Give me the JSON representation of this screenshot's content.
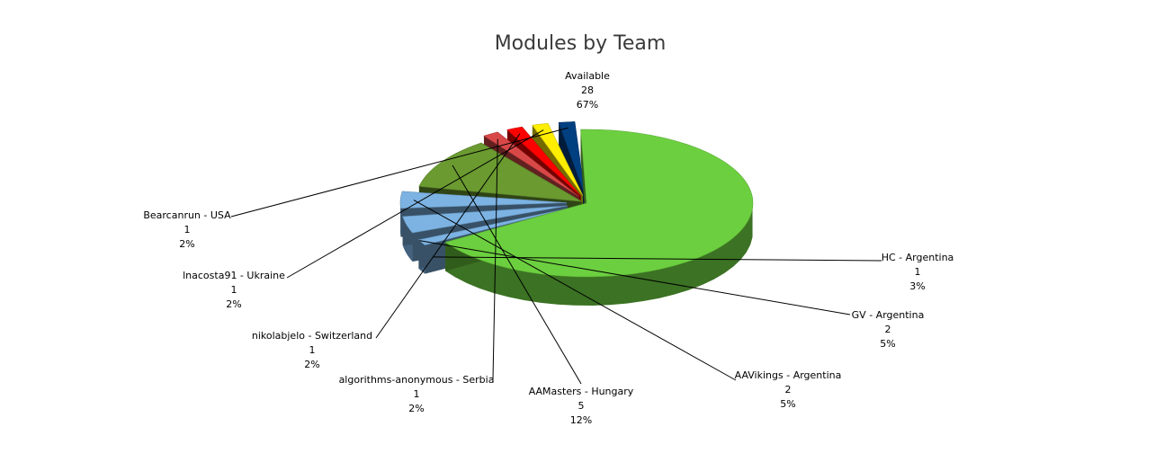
{
  "chart_data": {
    "type": "pie",
    "title": "Modules by Team",
    "slices": [
      {
        "label": "Available",
        "value": 28,
        "percent": "67%",
        "color": "#6ccf3f"
      },
      {
        "label": "HC - Argentina",
        "value": 1,
        "percent": "3%",
        "color": "#7cb3e3"
      },
      {
        "label": "GV - Argentina",
        "value": 2,
        "percent": "5%",
        "color": "#7cb3e3"
      },
      {
        "label": "AAVikings - Argentina",
        "value": 2,
        "percent": "5%",
        "color": "#7cb3e3"
      },
      {
        "label": "AAMasters - Hungary",
        "value": 5,
        "percent": "12%",
        "color": "#6a9a30"
      },
      {
        "label": "algorithms-anonymous - Serbia",
        "value": 1,
        "percent": "2%",
        "color": "#d94848"
      },
      {
        "label": "nikolabjelo - Switzerland",
        "value": 1,
        "percent": "2%",
        "color": "#ff0000"
      },
      {
        "label": "lnacosta91 - Ukraine",
        "value": 1,
        "percent": "2%",
        "color": "#ffee00"
      },
      {
        "label": "Bearcanrun - USA",
        "value": 1,
        "percent": "2%",
        "color": "#003f80"
      }
    ],
    "legend": "none"
  }
}
